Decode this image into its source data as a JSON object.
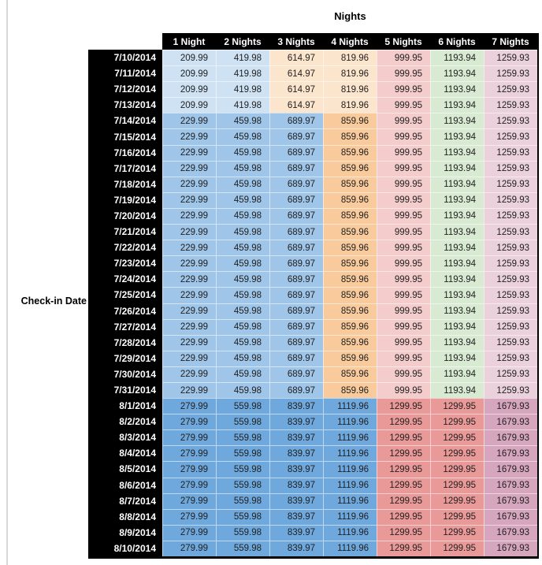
{
  "title": "Nights",
  "row_axis_label": "Check-in Date",
  "colors": {
    "header_bg": "#000000",
    "header_text": "#ffffff",
    "value_text": "#212121",
    "left_gridline": "#d9d9d9",
    "palette": {
      "light_blue": "#cfe2f3",
      "medium_blue": "#9fc5e8",
      "dark_blue": "#6fa8dc",
      "light_orange": "#fce5cd",
      "medium_orange": "#f9cb9c",
      "light_red": "#f4cccc",
      "medium_red": "#ea9999",
      "light_green": "#d9ead3",
      "light_purple": "#ead1dc",
      "medium_purple": "#d5a6bd"
    }
  },
  "table": {
    "column_headers": [
      "1 Night",
      "2 Nights",
      "3 Nights",
      "4 Nights",
      "5 Nights",
      "6 Nights",
      "7 Nights"
    ],
    "bands": [
      {
        "dates": [
          "7/10/2014",
          "7/11/2014",
          "7/12/2014",
          "7/13/2014"
        ],
        "values": [
          "209.99",
          "419.98",
          "614.97",
          "819.96",
          "999.95",
          "1193.94",
          "1259.93"
        ],
        "cell_colors": [
          "#cfe2f3",
          "#cfe2f3",
          "#fce5cd",
          "#fce5cd",
          "#f4cccc",
          "#d9ead3",
          "#ead1dc"
        ]
      },
      {
        "dates": [
          "7/14/2014",
          "7/15/2014",
          "7/16/2014",
          "7/17/2014",
          "7/18/2014",
          "7/19/2014",
          "7/20/2014",
          "7/21/2014",
          "7/22/2014",
          "7/23/2014",
          "7/24/2014",
          "7/25/2014",
          "7/26/2014",
          "7/27/2014",
          "7/28/2014",
          "7/29/2014",
          "7/30/2014",
          "7/31/2014"
        ],
        "values": [
          "229.99",
          "459.98",
          "689.97",
          "859.96",
          "999.95",
          "1193.94",
          "1259.93"
        ],
        "cell_colors": [
          "#9fc5e8",
          "#9fc5e8",
          "#9fc5e8",
          "#f9cb9c",
          "#f4cccc",
          "#d9ead3",
          "#ead1dc"
        ]
      },
      {
        "dates": [
          "8/1/2014",
          "8/2/2014",
          "8/3/2014",
          "8/4/2014",
          "8/5/2014",
          "8/6/2014",
          "8/7/2014",
          "8/8/2014",
          "8/9/2014",
          "8/10/2014"
        ],
        "values": [
          "279.99",
          "559.98",
          "839.97",
          "1119.96",
          "1299.95",
          "1299.95",
          "1679.93"
        ],
        "cell_colors": [
          "#6fa8dc",
          "#6fa8dc",
          "#6fa8dc",
          "#6fa8dc",
          "#ea9999",
          "#ea9999",
          "#d5a6bd"
        ]
      }
    ]
  }
}
